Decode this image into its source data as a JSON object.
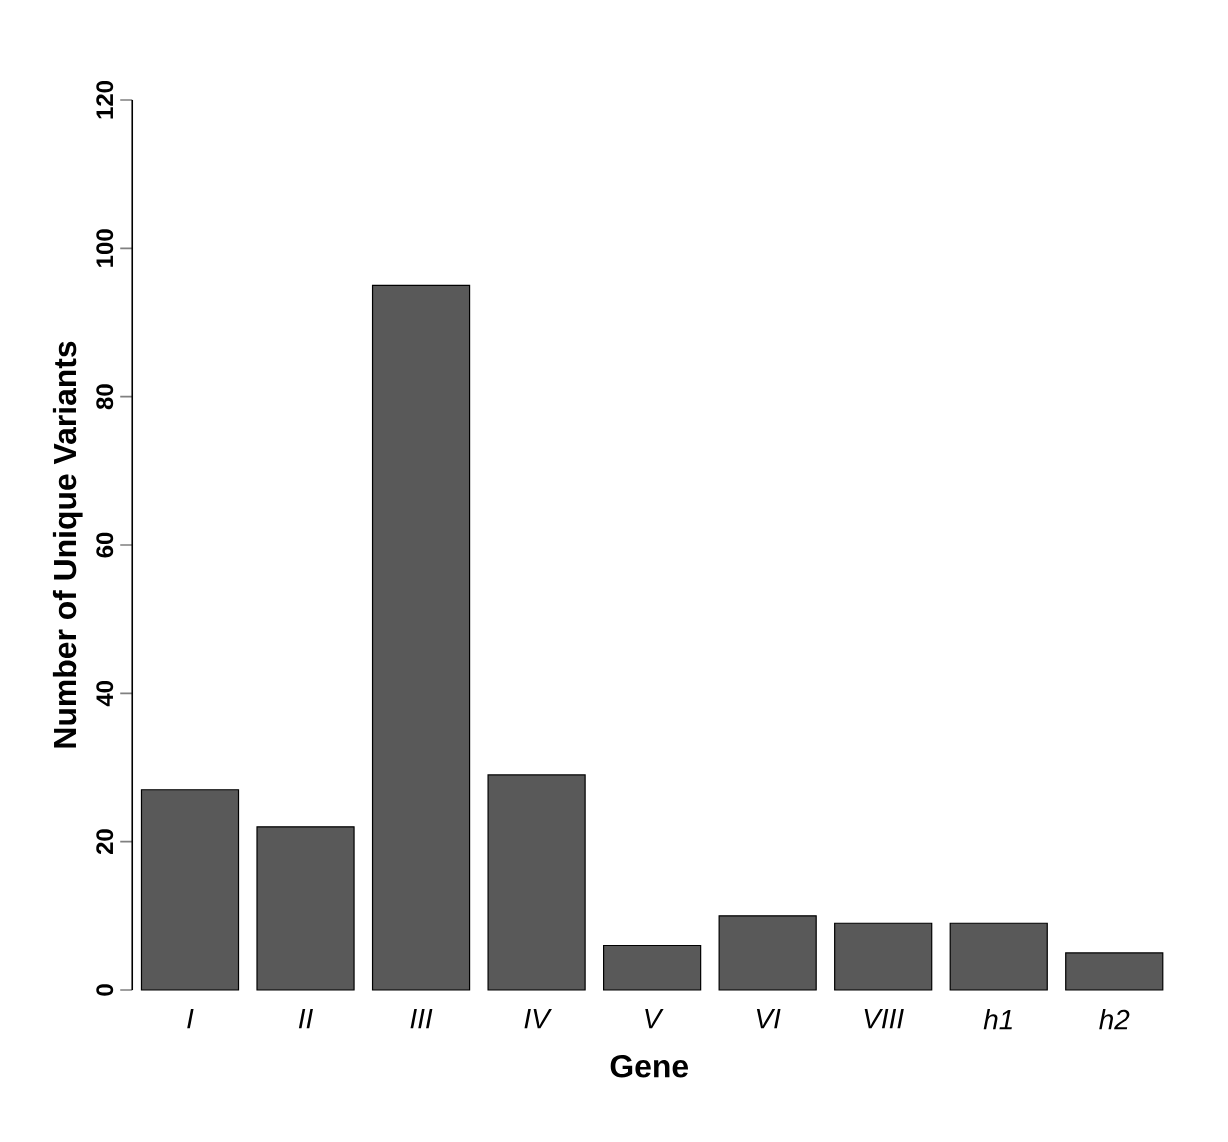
{
  "chart_data": {
    "type": "bar",
    "xlabel": "Gene",
    "ylabel": "Number of Unique Variants",
    "categories": [
      "I",
      "II",
      "III",
      "IV",
      "V",
      "VI",
      "VIII",
      "h1",
      "h2"
    ],
    "values": [
      27,
      22,
      95,
      29,
      6,
      10,
      9,
      9,
      5
    ],
    "color": "#595959",
    "ylim": [
      0,
      120
    ],
    "yticks": [
      0,
      20,
      40,
      60,
      80,
      100,
      120
    ],
    "grid": false
  }
}
